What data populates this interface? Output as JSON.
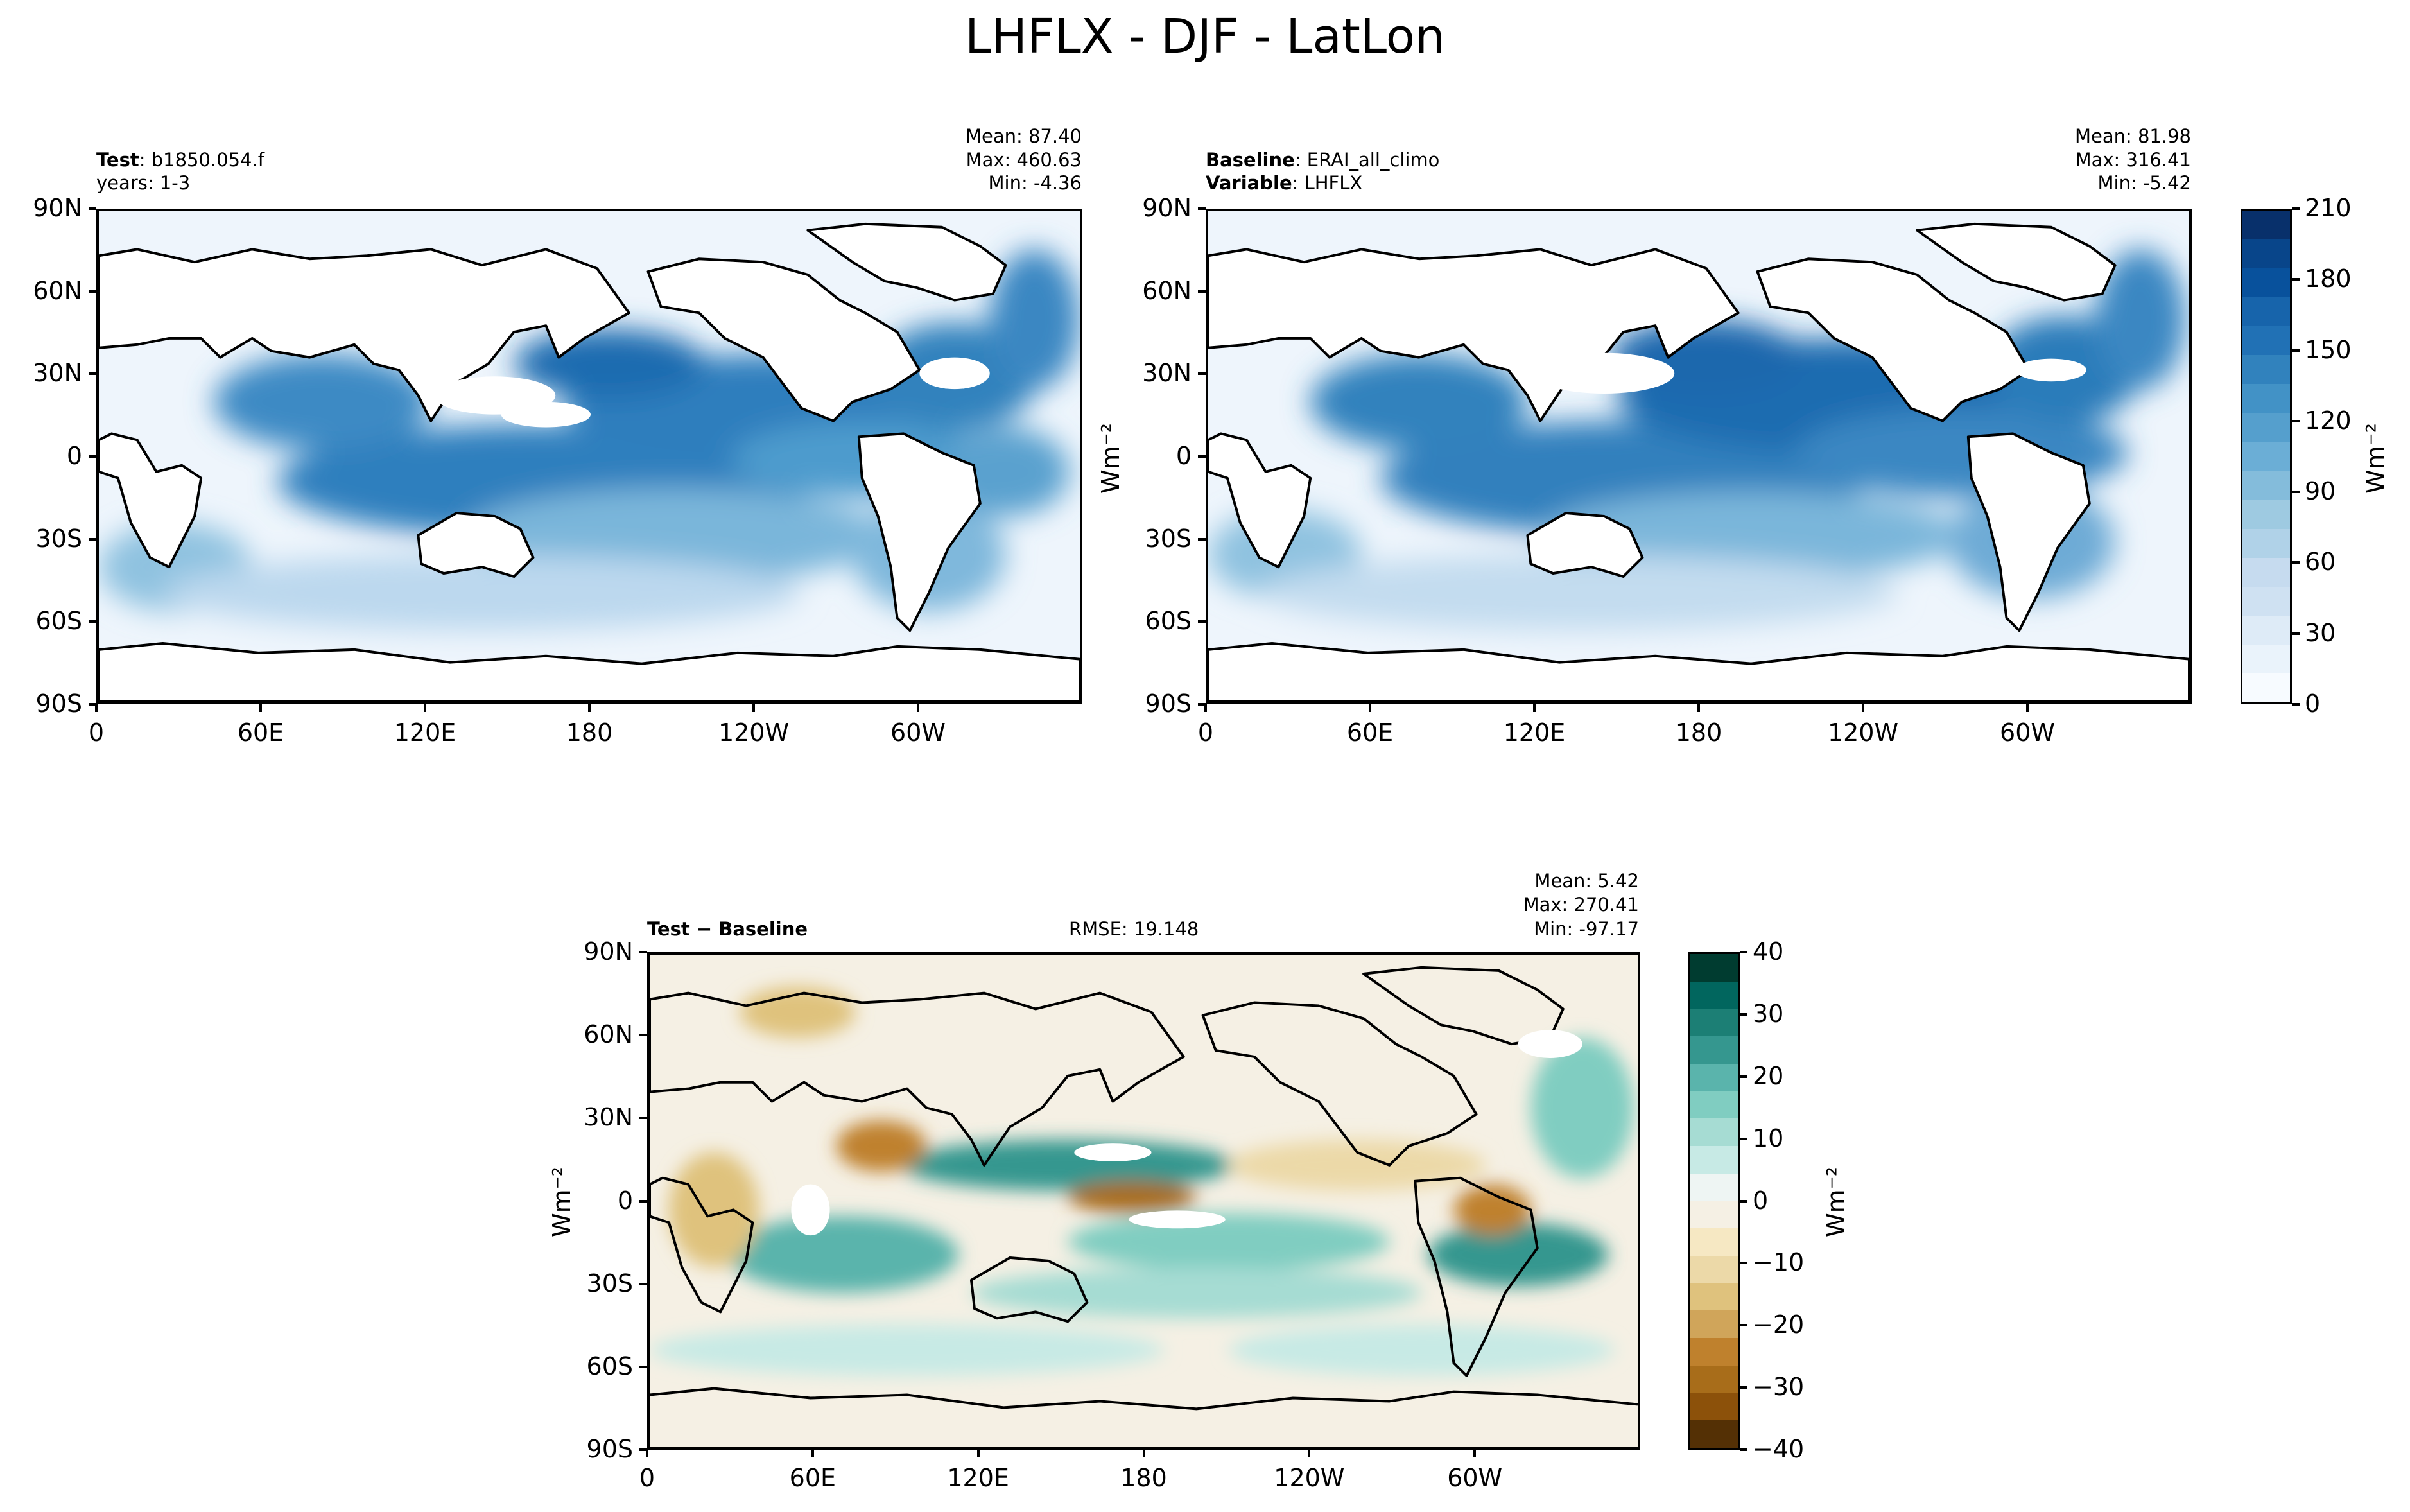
{
  "title": "LHFLX - DJF - LatLon",
  "panels": {
    "test": {
      "label_bold": "Test",
      "label_rest": ": b1850.054.f",
      "line2": "years: 1-3",
      "mean": "Mean: 87.40",
      "max": "Max: 460.63",
      "min": "Min: -4.36"
    },
    "baseline": {
      "label_bold": "Baseline",
      "label_rest": ": ERAI_all_climo",
      "line2_bold": "Variable",
      "line2_rest": ": LHFLX",
      "mean": "Mean: 81.98",
      "max": "Max: 316.41",
      "min": "Min: -5.42"
    },
    "diff": {
      "label": "Test − Baseline",
      "rmse": "RMSE: 19.148",
      "mean": "Mean:  5.42",
      "max": "Max: 270.41",
      "min": "Min: -97.17"
    }
  },
  "lat_ticks": [
    "90N",
    "60N",
    "30N",
    "0",
    "30S",
    "60S",
    "90S"
  ],
  "lon_ticks": [
    "0",
    "60E",
    "120E",
    "180",
    "120W",
    "60W"
  ],
  "units": "Wm⁻²",
  "colorbar_top": {
    "ticks": [
      "210",
      "180",
      "150",
      "120",
      "90",
      "60",
      "30",
      "0"
    ],
    "colors": [
      "#f7fbff",
      "#eaf3fb",
      "#deebf7",
      "#cfe1f2",
      "#c6dbef",
      "#b0d2e8",
      "#9ecae1",
      "#84bcdb",
      "#6baed6",
      "#559fcd",
      "#4292c6",
      "#3182bd",
      "#2171b5",
      "#1764ab",
      "#08519c",
      "#08458a",
      "#08306b"
    ]
  },
  "colorbar_diff": {
    "ticks": [
      "40",
      "30",
      "20",
      "10",
      "0",
      "−10",
      "−20",
      "−30",
      "−40"
    ],
    "colors": [
      "#543005",
      "#8c510a",
      "#a86d1a",
      "#bf812d",
      "#d0a55a",
      "#dfc27d",
      "#ecd9a8",
      "#f6e8c3",
      "#f5f0e4",
      "#eef5f3",
      "#c7eae5",
      "#a6dcd3",
      "#80cdc1",
      "#5ab4ac",
      "#35978f",
      "#1c7f75",
      "#01665e",
      "#003c30"
    ]
  },
  "chart_data": [
    {
      "type": "heatmap",
      "title": "Test: b1850.054.f",
      "subtitle": "years: 1-3",
      "variable": "LHFLX",
      "season": "DJF",
      "stats": {
        "mean": 87.4,
        "max": 460.63,
        "min": -4.36
      },
      "xlim": [
        0,
        360
      ],
      "ylim": [
        -90,
        90
      ],
      "x_ticks": [
        "0",
        "60E",
        "120E",
        "180",
        "120W",
        "60W"
      ],
      "y_ticks": [
        "90N",
        "60N",
        "30N",
        "0",
        "30S",
        "60S",
        "90S"
      ],
      "colorbar": {
        "range": [
          0,
          210
        ],
        "ticks": [
          0,
          30,
          60,
          90,
          120,
          150,
          180,
          210
        ],
        "label": "Wm⁻²"
      }
    },
    {
      "type": "heatmap",
      "title": "Baseline: ERAI_all_climo",
      "subtitle": "Variable: LHFLX",
      "variable": "LHFLX",
      "season": "DJF",
      "stats": {
        "mean": 81.98,
        "max": 316.41,
        "min": -5.42
      },
      "xlim": [
        0,
        360
      ],
      "ylim": [
        -90,
        90
      ],
      "x_ticks": [
        "0",
        "60E",
        "120E",
        "180",
        "120W",
        "60W"
      ],
      "y_ticks": [
        "90N",
        "60N",
        "30N",
        "0",
        "30S",
        "60S",
        "90S"
      ],
      "colorbar": {
        "range": [
          0,
          210
        ],
        "ticks": [
          0,
          30,
          60,
          90,
          120,
          150,
          180,
          210
        ],
        "label": "Wm⁻²"
      }
    },
    {
      "type": "heatmap",
      "title": "Test − Baseline",
      "variable": "LHFLX",
      "season": "DJF",
      "rmse": 19.148,
      "stats": {
        "mean": 5.42,
        "max": 270.41,
        "min": -97.17
      },
      "xlim": [
        0,
        360
      ],
      "ylim": [
        -90,
        90
      ],
      "x_ticks": [
        "0",
        "60E",
        "120E",
        "180",
        "120W",
        "60W"
      ],
      "y_ticks": [
        "90N",
        "60N",
        "30N",
        "0",
        "30S",
        "60S",
        "90S"
      ],
      "colorbar": {
        "range": [
          -40,
          40
        ],
        "ticks": [
          -40,
          -30,
          -20,
          -10,
          0,
          10,
          20,
          30,
          40
        ],
        "label": "Wm⁻²"
      }
    }
  ]
}
